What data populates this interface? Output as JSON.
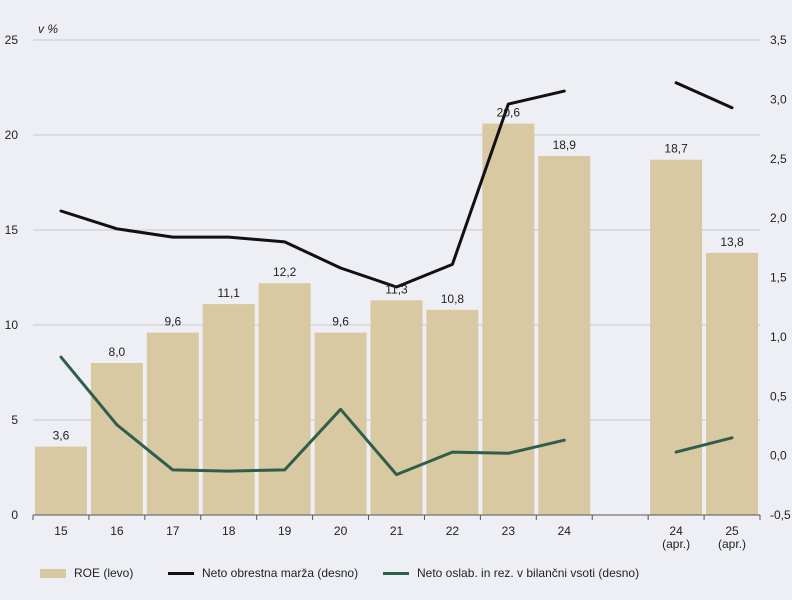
{
  "chart_data": {
    "type": "bar",
    "unit_label": "v %",
    "categories": [
      "15",
      "16",
      "17",
      "18",
      "19",
      "20",
      "21",
      "22",
      "23",
      "24",
      "",
      "24\n(apr.)",
      "25\n(apr.)"
    ],
    "left_axis": {
      "ylim": [
        0,
        25
      ],
      "ticks": [
        "0",
        "5",
        "10",
        "15",
        "20",
        "25"
      ]
    },
    "right_axis": {
      "ylim": [
        -0.5,
        3.5
      ],
      "ticks": [
        "-0,5",
        "0,0",
        "0,5",
        "1,0",
        "1,5",
        "2,0",
        "2,5",
        "3,0",
        "3,5"
      ]
    },
    "grid": true,
    "legend_position": "bottom",
    "series": [
      {
        "name": "ROE (levo)",
        "type": "bar",
        "axis": "left",
        "color": "#d9c9a3",
        "values": [
          3.6,
          8.0,
          9.6,
          11.1,
          12.2,
          9.6,
          11.3,
          10.8,
          20.6,
          18.9,
          null,
          18.7,
          13.8
        ],
        "labels": [
          "3,6",
          "8,0",
          "9,6",
          "11,1",
          "12,2",
          "9,6",
          "11,3",
          "10,8",
          "20,6",
          "18,9",
          "",
          "18,7",
          "13,8"
        ]
      },
      {
        "name": "Neto obrestna marža (desno)",
        "type": "line",
        "axis": "right",
        "color": "#111111",
        "values": [
          2.06,
          1.91,
          1.84,
          1.84,
          1.8,
          1.58,
          1.42,
          1.61,
          2.96,
          3.07,
          null,
          3.14,
          2.93
        ]
      },
      {
        "name": "Neto oslab. in rez. v bilančni vsoti (desno)",
        "type": "line",
        "axis": "right",
        "color": "#2f5e4a",
        "values": [
          0.83,
          0.26,
          -0.12,
          -0.13,
          -0.12,
          0.39,
          -0.16,
          0.03,
          0.02,
          0.13,
          null,
          0.03,
          0.15
        ]
      }
    ]
  }
}
